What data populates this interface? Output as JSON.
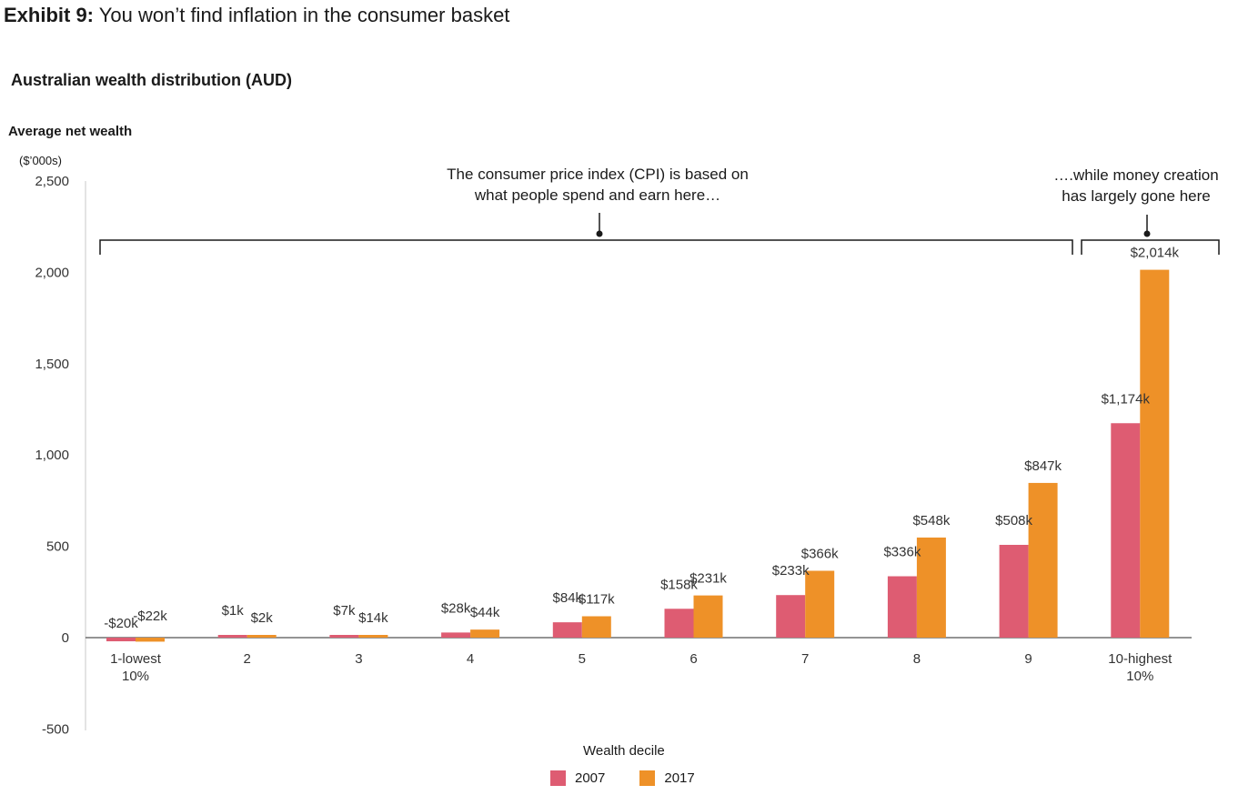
{
  "header": {
    "exhibit_label": "Exhibit 9:",
    "exhibit_title": "You won’t find inflation in the consumer basket",
    "chart_title": "Australian wealth distribution (AUD)"
  },
  "annotations": {
    "cpi_line1": "The consumer price index (CPI) is based on",
    "cpi_line2": "what people spend and earn here…",
    "money_line1": "….while money creation",
    "money_line2": "has largely gone here"
  },
  "chart_data": {
    "type": "bar",
    "title": "Australian wealth distribution (AUD)",
    "ylabel": "Average net wealth",
    "yunit": "($’000s)",
    "xlabel": "Wealth decile",
    "ylim": [
      -500,
      2500
    ],
    "yticks": [
      2500,
      2000,
      1500,
      1000,
      500,
      0,
      -500
    ],
    "ytick_labels": [
      "2,500",
      "2,000",
      "1,500",
      "1,000",
      "500",
      "0",
      "-500"
    ],
    "categories": [
      [
        "1-lowest",
        "10%"
      ],
      [
        "2"
      ],
      [
        "3"
      ],
      [
        "4"
      ],
      [
        "5"
      ],
      [
        "6"
      ],
      [
        "7"
      ],
      [
        "8"
      ],
      [
        "9"
      ],
      [
        "10-highest",
        "10%"
      ]
    ],
    "legend_position": "bottom",
    "grid": false,
    "series": [
      {
        "name": "2007",
        "color": "#de5c72",
        "values": [
          -20,
          1,
          7,
          28,
          84,
          158,
          233,
          336,
          508,
          1174
        ],
        "labels": [
          "-$20k",
          "$1k",
          "$7k",
          "$28k",
          "$84k",
          "$158k",
          "$233k",
          "$336k",
          "$508k",
          "$1,174k"
        ]
      },
      {
        "name": "2017",
        "color": "#ee9128",
        "values": [
          -22,
          2,
          14,
          44,
          117,
          231,
          366,
          548,
          847,
          2014
        ],
        "labels": [
          "-$22k",
          "$2k",
          "$14k",
          "$44k",
          "$117k",
          "$231k",
          "$366k",
          "$548k",
          "$847k",
          "$2,014k"
        ]
      }
    ]
  }
}
